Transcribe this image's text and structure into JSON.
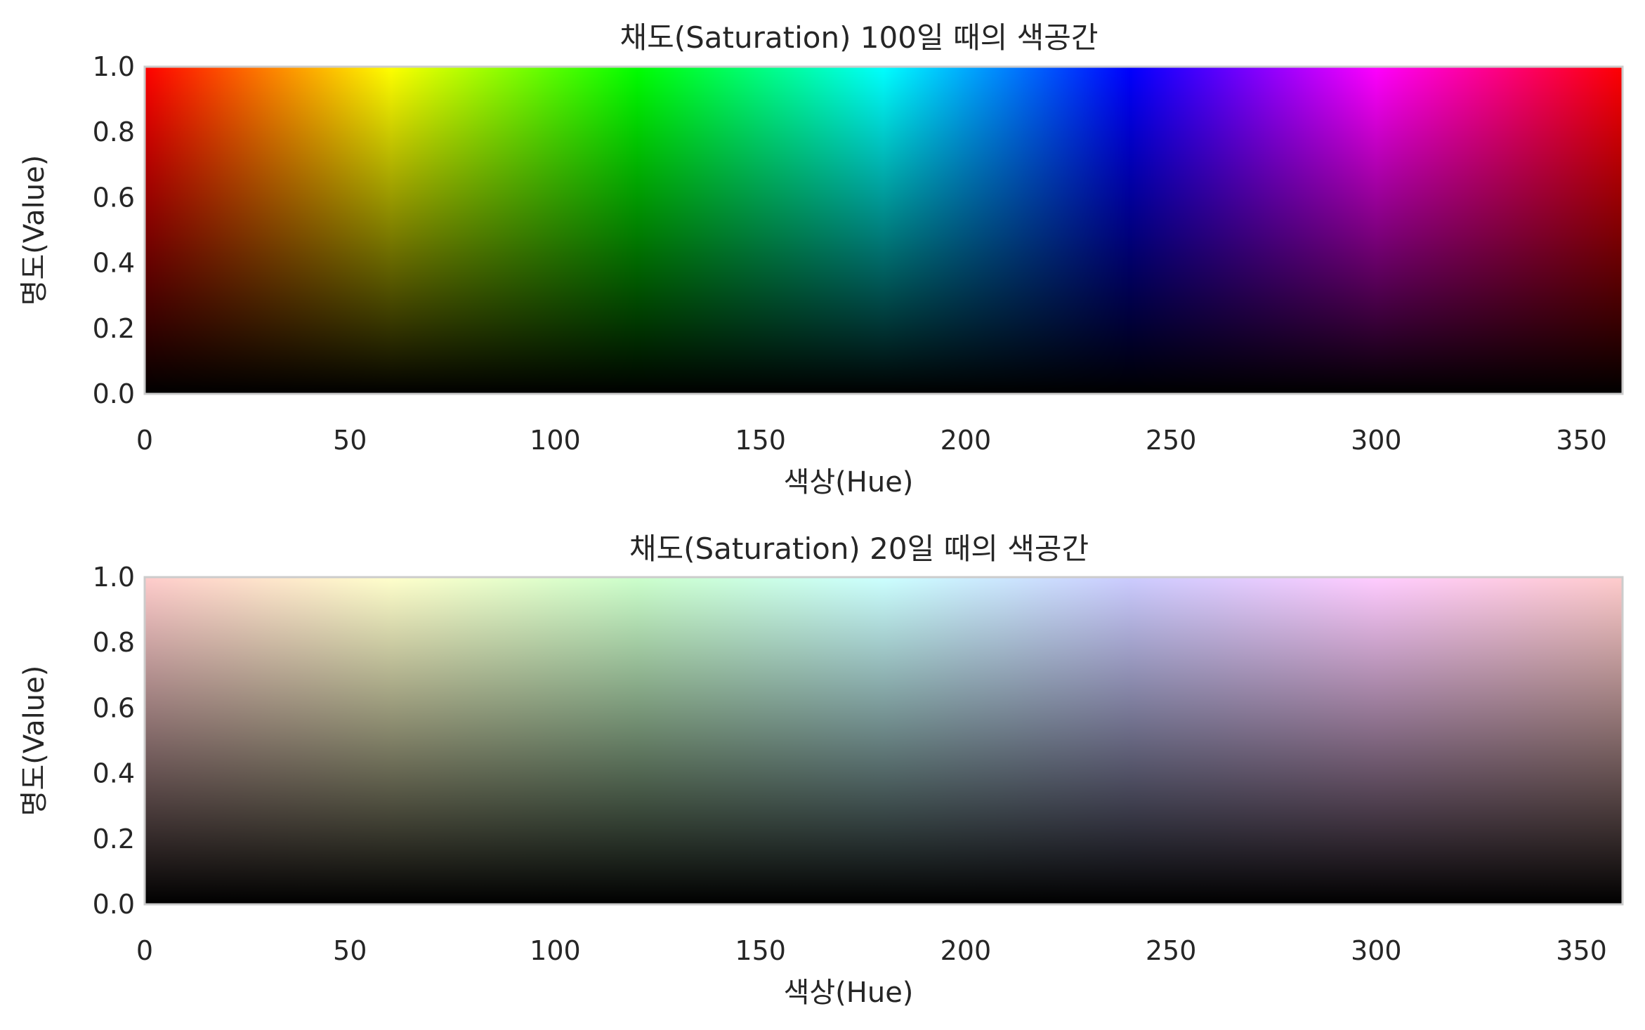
{
  "chart_data": [
    {
      "type": "heatmap",
      "title": "채도(Saturation) 100일 때의 색공간",
      "xlabel": "색상(Hue)",
      "ylabel": "명도(Value)",
      "saturation": 1.0,
      "xlim": [
        0,
        360
      ],
      "ylim": [
        0,
        1
      ],
      "xticks": [
        0,
        50,
        100,
        150,
        200,
        250,
        300,
        350
      ],
      "xtick_labels": [
        "0",
        "50",
        "100",
        "150",
        "200",
        "250",
        "300",
        "350"
      ],
      "yticks": [
        0,
        0.2,
        0.4,
        0.6,
        0.8,
        1.0
      ],
      "ytick_labels": [
        "0.0",
        "0.2",
        "0.4",
        "0.6",
        "0.8",
        "1.0"
      ],
      "grid": false,
      "frame_color": "#cccccc"
    },
    {
      "type": "heatmap",
      "title": "채도(Saturation) 20일 때의 색공간",
      "xlabel": "색상(Hue)",
      "ylabel": "명도(Value)",
      "saturation": 0.2,
      "xlim": [
        0,
        360
      ],
      "ylim": [
        0,
        1
      ],
      "xticks": [
        0,
        50,
        100,
        150,
        200,
        250,
        300,
        350
      ],
      "xtick_labels": [
        "0",
        "50",
        "100",
        "150",
        "200",
        "250",
        "300",
        "350"
      ],
      "yticks": [
        0,
        0.2,
        0.4,
        0.6,
        0.8,
        1.0
      ],
      "ytick_labels": [
        "0.0",
        "0.2",
        "0.4",
        "0.6",
        "0.8",
        "1.0"
      ],
      "grid": false,
      "frame_color": "#cccccc"
    }
  ]
}
